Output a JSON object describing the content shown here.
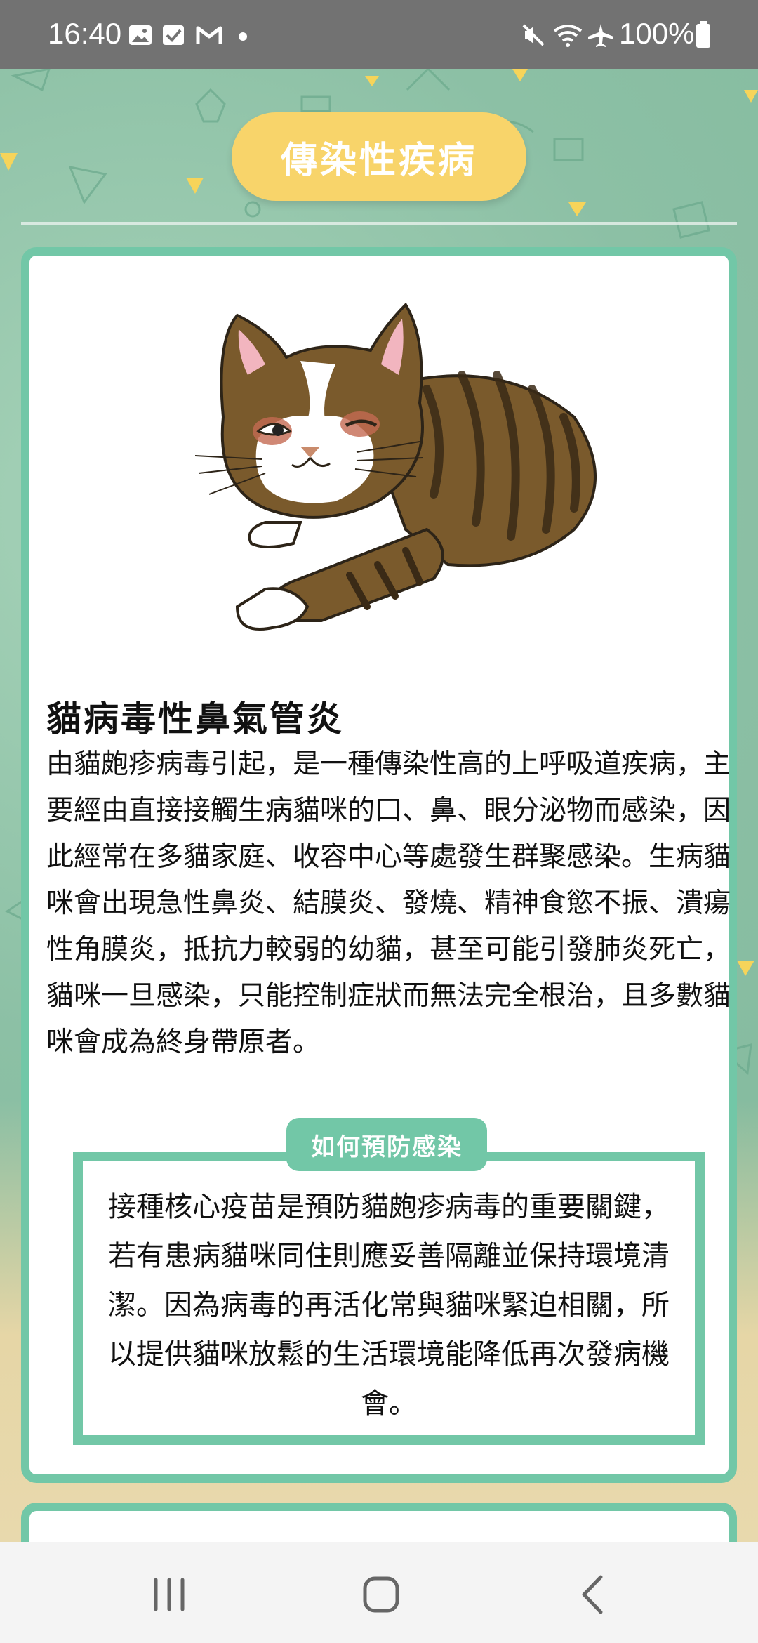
{
  "status_bar": {
    "time": "16:40",
    "battery": "100%",
    "icons": [
      "gallery-icon",
      "checkbox-icon",
      "gmail-icon",
      "dot-icon",
      "mute-icon",
      "wifi-icon",
      "airplane-icon",
      "battery-icon"
    ]
  },
  "header": {
    "title": "傳染性疾病"
  },
  "card": {
    "disease_title": "貓病毒性鼻氣管炎",
    "description": "由貓皰疹病毒引起，是一種傳染性高的上呼吸道疾病，主要經由直接接觸生病貓咪的口、鼻、眼分泌物而感染，因此經常在多貓家庭、收容中心等處發生群聚感染。生病貓咪會出現急性鼻炎、結膜炎、發燒、精神食慾不振、潰瘍性角膜炎，抵抗力較弱的幼貓，甚至可能引發肺炎死亡，貓咪一旦感染，只能控制症狀而無法完全根治，且多數貓咪會成為終身帶原者。",
    "prevention_tag": "如何預防感染",
    "prevention_text": "接種核心疫苗是預防貓皰疹病毒的重要關鍵，若有患病貓咪同住則應妥善隔離並保持環境清潔。因為病毒的再活化常與貓咪緊迫相關，所以提供貓咪放鬆的生活環境能降低再次發病機會。"
  },
  "colors": {
    "accent_green": "#72c7a7",
    "pill_yellow": "#f8d46a",
    "status_bar": "#727272"
  },
  "nav_bar": {
    "buttons": [
      "recent-apps-icon",
      "home-icon",
      "back-icon"
    ]
  }
}
